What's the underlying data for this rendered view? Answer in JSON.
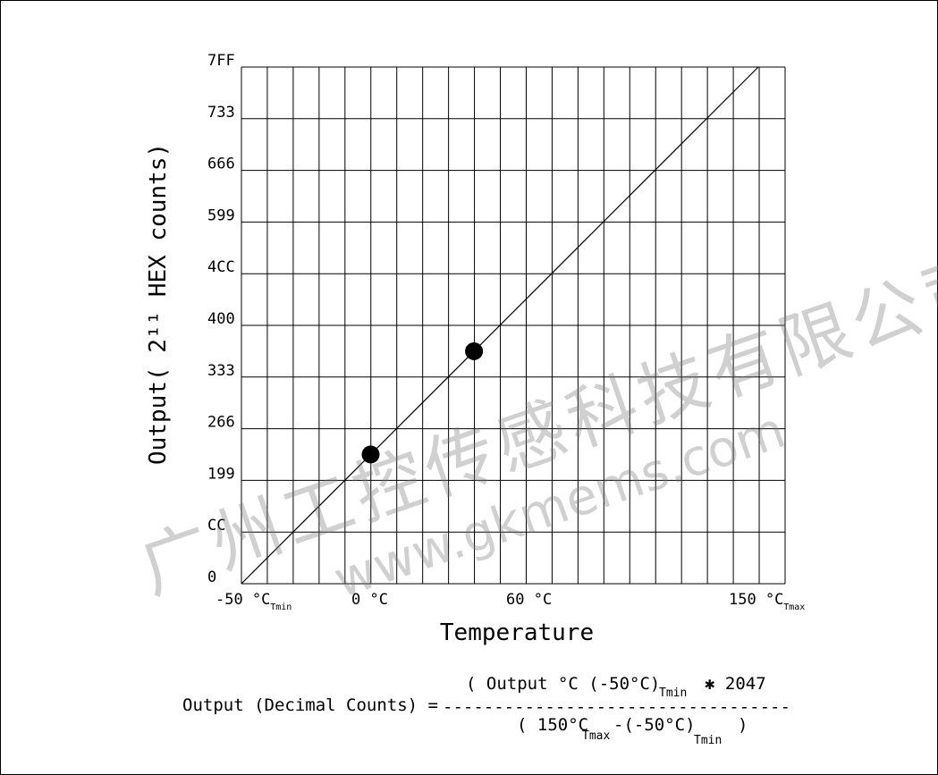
{
  "chart_data": {
    "type": "line",
    "title": "",
    "xlabel": "Temperature",
    "ylabel": "Output( 2¹¹ HEX counts)",
    "x_range": [
      -50,
      150
    ],
    "y_range_decimal": [
      0,
      2047
    ],
    "grid": true,
    "x_ticks": [
      {
        "value": -50,
        "text": "-50 °C",
        "sub": "Tmin"
      },
      {
        "value": 0,
        "text": "0 °C",
        "sub": ""
      },
      {
        "value": 60,
        "text": "60 °C",
        "sub": ""
      },
      {
        "value": 150,
        "text": "150 °C",
        "sub": "Tmax"
      }
    ],
    "y_ticks": [
      "0",
      "CC",
      "199",
      "266",
      "333",
      "400",
      "4CC",
      "599",
      "666",
      "733",
      "7FF"
    ],
    "series": [
      {
        "x": [
          -50,
          150
        ],
        "y_hex": [
          "0",
          "7FF"
        ],
        "y": [
          0,
          2047
        ]
      }
    ],
    "points": [
      {
        "x": 0,
        "y": 512
      },
      {
        "x": 40,
        "y": 921
      }
    ]
  },
  "formula": {
    "lhs": "Output (Decimal Counts) =",
    "numerator": "( Output °C (-50°C)",
    "numerator_sub": "Tmin",
    "multiplier": "✱ 2047",
    "dashes": "----------------------------------",
    "denominator_a": "( 150°C",
    "denominator_sub1": "Tmax",
    "denominator_b": "-(-50°C)",
    "denominator_sub2": "Tmin",
    "denominator_c": ")"
  },
  "watermark": {
    "chinese": "广州工控传感科技有限公司",
    "url": "www.gkmems.com"
  }
}
